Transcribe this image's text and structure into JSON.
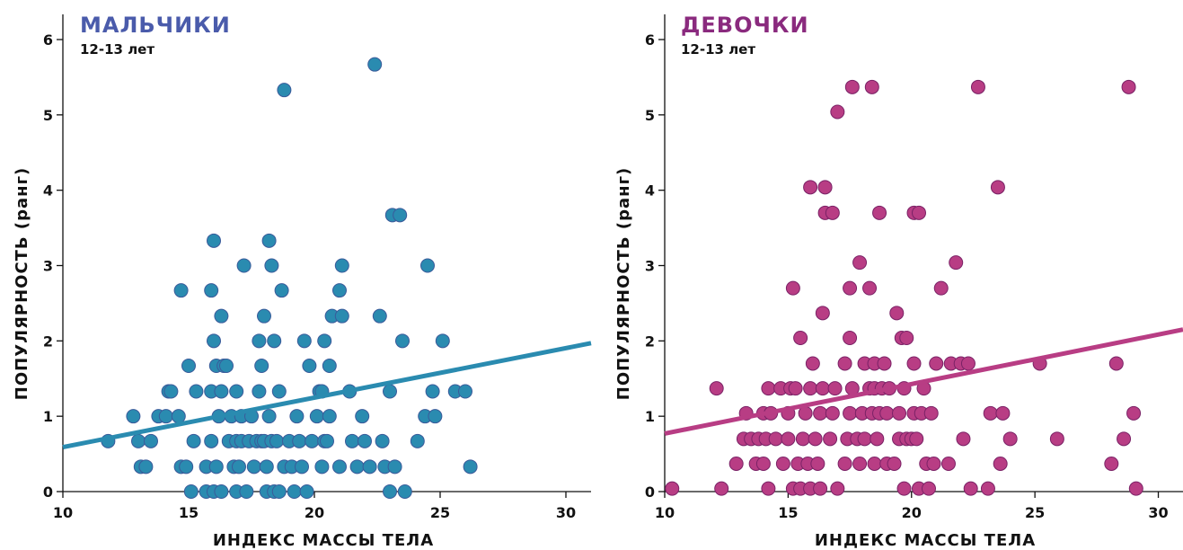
{
  "chart_data": [
    {
      "type": "scatter",
      "title": "МАЛЬЧИКИ",
      "subtitle": "12-13 лет",
      "xlabel": "ИНДЕКС МАССЫ ТЕЛА",
      "ylabel": "ПОПУЛЯРНОСТЬ (ранг)",
      "xlim": [
        10,
        31
      ],
      "ylim": [
        0,
        6
      ],
      "xticks": [
        "10",
        "15",
        "20",
        "25",
        "30"
      ],
      "yticks": [
        "0",
        "1",
        "2",
        "3",
        "4",
        "5",
        "6"
      ],
      "title_color": "#4a5bab",
      "point_color": "#2a8bb0",
      "point_stroke": "#3a5a9a",
      "line_color": "#2a8bb0",
      "trend_line": [
        [
          10,
          0.59
        ],
        [
          31,
          1.97
        ]
      ],
      "points": [
        [
          11.8,
          0.67
        ],
        [
          12.8,
          1.0
        ],
        [
          13.0,
          0.67
        ],
        [
          13.1,
          0.33
        ],
        [
          13.3,
          0.33
        ],
        [
          13.5,
          0.67
        ],
        [
          13.8,
          1.0
        ],
        [
          14.1,
          1.0
        ],
        [
          14.2,
          1.33
        ],
        [
          14.3,
          1.33
        ],
        [
          14.6,
          1.0
        ],
        [
          14.7,
          0.33
        ],
        [
          14.7,
          2.67
        ],
        [
          14.9,
          0.33
        ],
        [
          15.0,
          1.67
        ],
        [
          15.1,
          0.0
        ],
        [
          15.2,
          0.67
        ],
        [
          15.3,
          1.33
        ],
        [
          15.7,
          0.33
        ],
        [
          15.7,
          0.0
        ],
        [
          15.9,
          0.67
        ],
        [
          15.9,
          1.33
        ],
        [
          15.9,
          2.67
        ],
        [
          16.0,
          2.0
        ],
        [
          16.0,
          3.33
        ],
        [
          16.0,
          0.0
        ],
        [
          16.1,
          0.33
        ],
        [
          16.1,
          1.67
        ],
        [
          16.2,
          1.0
        ],
        [
          16.3,
          0.0
        ],
        [
          16.3,
          1.33
        ],
        [
          16.3,
          2.33
        ],
        [
          16.4,
          1.67
        ],
        [
          16.5,
          1.67
        ],
        [
          16.6,
          0.67
        ],
        [
          16.7,
          1.0
        ],
        [
          16.8,
          0.33
        ],
        [
          16.9,
          0.67
        ],
        [
          16.9,
          1.33
        ],
        [
          16.9,
          0.0
        ],
        [
          17.0,
          0.33
        ],
        [
          17.1,
          1.0
        ],
        [
          17.1,
          0.67
        ],
        [
          17.2,
          3.0
        ],
        [
          17.3,
          0.0
        ],
        [
          17.4,
          0.67
        ],
        [
          17.5,
          1.0
        ],
        [
          17.6,
          0.33
        ],
        [
          17.7,
          0.67
        ],
        [
          17.8,
          1.33
        ],
        [
          17.8,
          2.0
        ],
        [
          17.9,
          1.67
        ],
        [
          17.9,
          0.67
        ],
        [
          18.0,
          2.33
        ],
        [
          18.0,
          0.67
        ],
        [
          18.1,
          0.33
        ],
        [
          18.1,
          0.0
        ],
        [
          18.2,
          1.0
        ],
        [
          18.2,
          3.33
        ],
        [
          18.3,
          0.67
        ],
        [
          18.3,
          3.0
        ],
        [
          18.4,
          2.0
        ],
        [
          18.4,
          0.0
        ],
        [
          18.5,
          0.67
        ],
        [
          18.6,
          0.0
        ],
        [
          18.6,
          1.33
        ],
        [
          18.7,
          2.67
        ],
        [
          18.8,
          0.33
        ],
        [
          18.8,
          5.33
        ],
        [
          19.0,
          0.67
        ],
        [
          19.1,
          0.33
        ],
        [
          19.2,
          0.0
        ],
        [
          19.3,
          1.0
        ],
        [
          19.4,
          0.67
        ],
        [
          19.5,
          0.33
        ],
        [
          19.6,
          2.0
        ],
        [
          19.7,
          0.0
        ],
        [
          19.8,
          1.67
        ],
        [
          19.9,
          0.67
        ],
        [
          20.1,
          1.0
        ],
        [
          20.2,
          1.33
        ],
        [
          20.3,
          0.33
        ],
        [
          20.3,
          1.33
        ],
        [
          20.4,
          0.67
        ],
        [
          20.4,
          2.0
        ],
        [
          20.5,
          0.67
        ],
        [
          20.6,
          1.0
        ],
        [
          20.6,
          1.67
        ],
        [
          20.7,
          2.33
        ],
        [
          21.0,
          2.67
        ],
        [
          21.0,
          0.33
        ],
        [
          21.1,
          3.0
        ],
        [
          21.1,
          2.33
        ],
        [
          21.4,
          1.33
        ],
        [
          21.5,
          0.67
        ],
        [
          21.7,
          0.33
        ],
        [
          21.9,
          1.0
        ],
        [
          22.0,
          0.67
        ],
        [
          22.2,
          0.33
        ],
        [
          22.4,
          5.67
        ],
        [
          22.6,
          2.33
        ],
        [
          22.7,
          0.67
        ],
        [
          22.8,
          0.33
        ],
        [
          23.0,
          1.33
        ],
        [
          23.0,
          0.0
        ],
        [
          23.1,
          3.67
        ],
        [
          23.2,
          0.33
        ],
        [
          23.4,
          3.67
        ],
        [
          23.5,
          2.0
        ],
        [
          23.6,
          0.0
        ],
        [
          24.1,
          0.67
        ],
        [
          24.4,
          1.0
        ],
        [
          24.5,
          3.0
        ],
        [
          24.7,
          1.33
        ],
        [
          24.8,
          1.0
        ],
        [
          25.1,
          2.0
        ],
        [
          25.6,
          1.33
        ],
        [
          26.0,
          1.33
        ],
        [
          26.2,
          0.33
        ]
      ]
    },
    {
      "type": "scatter",
      "title": "ДЕВОЧКИ",
      "subtitle": "12-13 лет",
      "xlabel": "ИНДЕКС МАССЫ ТЕЛА",
      "ylabel": "ПОПУЛЯРНОСТЬ (ранг)",
      "xlim": [
        10,
        31
      ],
      "ylim": [
        0,
        6
      ],
      "xticks": [
        "10",
        "15",
        "20",
        "25",
        "30"
      ],
      "yticks": [
        "0",
        "1",
        "2",
        "3",
        "4",
        "5",
        "6"
      ],
      "title_color": "#8a2a7e",
      "point_color": "#b83d84",
      "point_stroke": "#7a2266",
      "line_color": "#b83d84",
      "trend_line": [
        [
          10,
          0.77
        ],
        [
          31,
          2.15
        ]
      ],
      "points": [
        [
          10.3,
          0.04
        ],
        [
          12.1,
          1.37
        ],
        [
          12.3,
          0.04
        ],
        [
          12.9,
          0.37
        ],
        [
          13.2,
          0.7
        ],
        [
          13.3,
          1.04
        ],
        [
          13.5,
          0.7
        ],
        [
          13.7,
          0.37
        ],
        [
          13.8,
          0.7
        ],
        [
          14.0,
          0.37
        ],
        [
          14.0,
          1.04
        ],
        [
          14.1,
          0.7
        ],
        [
          14.2,
          1.37
        ],
        [
          14.2,
          0.04
        ],
        [
          14.3,
          1.04
        ],
        [
          14.5,
          0.7
        ],
        [
          14.7,
          1.37
        ],
        [
          14.8,
          0.37
        ],
        [
          15.0,
          0.7
        ],
        [
          15.0,
          1.04
        ],
        [
          15.1,
          1.37
        ],
        [
          15.2,
          0.04
        ],
        [
          15.2,
          2.7
        ],
        [
          15.3,
          1.37
        ],
        [
          15.4,
          0.37
        ],
        [
          15.5,
          0.04
        ],
        [
          15.5,
          2.04
        ],
        [
          15.6,
          0.7
        ],
        [
          15.7,
          1.04
        ],
        [
          15.8,
          0.37
        ],
        [
          15.9,
          0.04
        ],
        [
          15.9,
          1.37
        ],
        [
          15.9,
          4.04
        ],
        [
          16.0,
          1.7
        ],
        [
          16.1,
          0.7
        ],
        [
          16.2,
          0.37
        ],
        [
          16.3,
          0.04
        ],
        [
          16.3,
          1.04
        ],
        [
          16.4,
          2.37
        ],
        [
          16.4,
          1.37
        ],
        [
          16.5,
          3.7
        ],
        [
          16.5,
          4.04
        ],
        [
          16.7,
          0.7
        ],
        [
          16.8,
          1.04
        ],
        [
          16.8,
          3.7
        ],
        [
          16.9,
          1.37
        ],
        [
          17.0,
          5.04
        ],
        [
          17.0,
          0.04
        ],
        [
          17.3,
          0.37
        ],
        [
          17.3,
          1.7
        ],
        [
          17.4,
          0.7
        ],
        [
          17.5,
          2.04
        ],
        [
          17.5,
          1.04
        ],
        [
          17.5,
          2.7
        ],
        [
          17.6,
          5.37
        ],
        [
          17.6,
          1.37
        ],
        [
          17.8,
          0.7
        ],
        [
          17.9,
          3.04
        ],
        [
          17.9,
          0.37
        ],
        [
          18.0,
          1.04
        ],
        [
          18.1,
          0.7
        ],
        [
          18.1,
          1.7
        ],
        [
          18.3,
          1.37
        ],
        [
          18.3,
          2.7
        ],
        [
          18.4,
          1.04
        ],
        [
          18.4,
          5.37
        ],
        [
          18.5,
          0.37
        ],
        [
          18.5,
          1.37
        ],
        [
          18.5,
          1.7
        ],
        [
          18.6,
          0.7
        ],
        [
          18.7,
          1.04
        ],
        [
          18.7,
          3.7
        ],
        [
          18.8,
          1.37
        ],
        [
          18.9,
          1.7
        ],
        [
          19.0,
          0.37
        ],
        [
          19.0,
          1.04
        ],
        [
          19.1,
          1.37
        ],
        [
          19.3,
          0.37
        ],
        [
          19.4,
          2.37
        ],
        [
          19.5,
          0.7
        ],
        [
          19.5,
          1.04
        ],
        [
          19.6,
          2.04
        ],
        [
          19.7,
          0.04
        ],
        [
          19.7,
          1.37
        ],
        [
          19.8,
          0.7
        ],
        [
          19.8,
          2.04
        ],
        [
          20.0,
          0.7
        ],
        [
          20.1,
          1.04
        ],
        [
          20.1,
          1.7
        ],
        [
          20.1,
          3.7
        ],
        [
          20.2,
          0.7
        ],
        [
          20.3,
          0.04
        ],
        [
          20.3,
          3.7
        ],
        [
          20.4,
          1.04
        ],
        [
          20.5,
          1.37
        ],
        [
          20.6,
          0.37
        ],
        [
          20.7,
          0.04
        ],
        [
          20.8,
          1.04
        ],
        [
          20.9,
          0.37
        ],
        [
          21.0,
          1.7
        ],
        [
          21.2,
          2.7
        ],
        [
          21.5,
          0.37
        ],
        [
          21.6,
          1.7
        ],
        [
          21.8,
          3.04
        ],
        [
          22.0,
          1.7
        ],
        [
          22.1,
          0.7
        ],
        [
          22.3,
          1.7
        ],
        [
          22.4,
          0.04
        ],
        [
          22.7,
          5.37
        ],
        [
          23.1,
          0.04
        ],
        [
          23.2,
          1.04
        ],
        [
          23.5,
          4.04
        ],
        [
          23.6,
          0.37
        ],
        [
          23.7,
          1.04
        ],
        [
          24.0,
          0.7
        ],
        [
          25.2,
          1.7
        ],
        [
          25.9,
          0.7
        ],
        [
          28.1,
          0.37
        ],
        [
          28.3,
          1.7
        ],
        [
          28.6,
          0.7
        ],
        [
          28.8,
          5.37
        ],
        [
          29.0,
          1.04
        ],
        [
          29.1,
          0.04
        ]
      ]
    }
  ]
}
